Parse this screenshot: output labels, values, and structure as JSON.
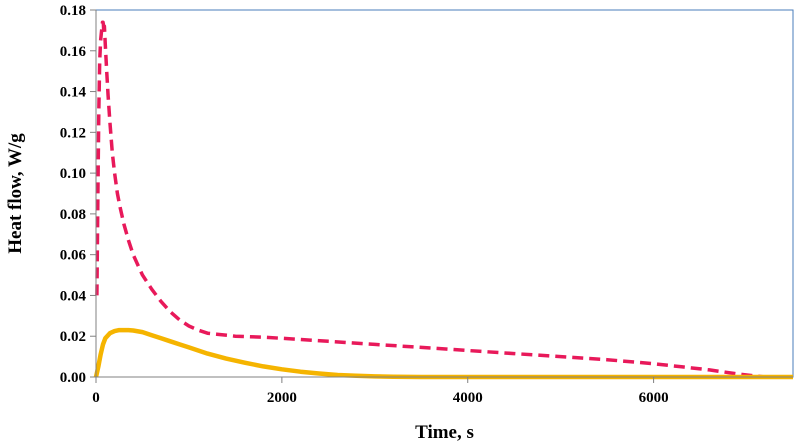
{
  "chart_data": {
    "type": "line",
    "title": "",
    "xlabel": "Time, s",
    "ylabel": "Heat flow, W/g",
    "xlim": [
      0,
      7500
    ],
    "ylim": [
      0,
      0.18
    ],
    "x_ticks": [
      0,
      2000,
      4000,
      6000
    ],
    "x_tick_labels": [
      "0",
      "2000",
      "4000",
      "6000"
    ],
    "y_ticks": [
      0,
      0.02,
      0.04,
      0.06,
      0.08,
      0.1,
      0.12,
      0.14,
      0.16,
      0.18
    ],
    "y_tick_labels": [
      "0.00",
      "0.02",
      "0.04",
      "0.06",
      "0.08",
      "0.10",
      "0.12",
      "0.14",
      "0.16",
      "0.18"
    ],
    "grid": false,
    "legend": "none",
    "frame_color": "#4a7ebb",
    "series": [
      {
        "style": "dashed",
        "color": "#e8195a",
        "x": [
          10,
          20,
          30,
          40,
          50,
          60,
          70,
          75,
          80,
          85,
          90,
          100,
          115,
          130,
          150,
          175,
          200,
          230,
          260,
          300,
          350,
          400,
          450,
          500,
          600,
          700,
          800,
          900,
          1000,
          1100,
          1200,
          1300,
          1500,
          1800,
          2000,
          2500,
          3000,
          3500,
          4000,
          4500,
          5000,
          5500,
          6000,
          6300,
          6600,
          6900,
          7100,
          7200,
          7300,
          7500
        ],
        "y": [
          0.04,
          0.09,
          0.13,
          0.155,
          0.165,
          0.17,
          0.174,
          0.174,
          0.173,
          0.168,
          0.172,
          0.163,
          0.15,
          0.138,
          0.125,
          0.11,
          0.1,
          0.09,
          0.083,
          0.075,
          0.067,
          0.06,
          0.055,
          0.05,
          0.043,
          0.037,
          0.032,
          0.028,
          0.025,
          0.023,
          0.0215,
          0.021,
          0.02,
          0.0195,
          0.019,
          0.0175,
          0.016,
          0.0145,
          0.013,
          0.0115,
          0.01,
          0.0085,
          0.0065,
          0.005,
          0.0035,
          0.0015,
          0.0005,
          0.0,
          0.0,
          0.0
        ]
      },
      {
        "style": "solid",
        "color": "#f5b400",
        "x": [
          0,
          25,
          50,
          75,
          100,
          150,
          200,
          250,
          300,
          350,
          400,
          500,
          600,
          700,
          800,
          900,
          1000,
          1200,
          1400,
          1600,
          1800,
          2000,
          2200,
          2400,
          2600,
          2800,
          3000,
          3200,
          3500,
          4000,
          5000,
          6000,
          7000,
          7500
        ],
        "y": [
          0.0,
          0.005,
          0.011,
          0.016,
          0.019,
          0.0215,
          0.0225,
          0.023,
          0.023,
          0.023,
          0.0228,
          0.022,
          0.0205,
          0.019,
          0.0175,
          0.016,
          0.0145,
          0.0115,
          0.009,
          0.007,
          0.0052,
          0.0038,
          0.0026,
          0.0017,
          0.001,
          0.0006,
          0.0003,
          0.0001,
          0.0,
          0.0,
          0.0,
          0.0,
          0.0,
          0.0
        ]
      }
    ]
  }
}
